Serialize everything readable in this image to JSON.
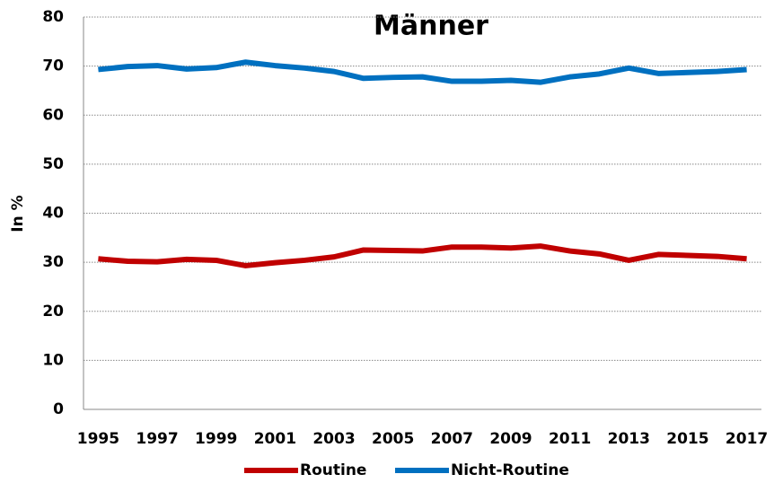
{
  "chart_data": {
    "type": "line",
    "title": "Männer",
    "y_label": "In %",
    "x": [
      1995,
      1996,
      1997,
      1998,
      1999,
      2000,
      2001,
      2002,
      2003,
      2004,
      2005,
      2006,
      2007,
      2008,
      2009,
      2010,
      2011,
      2012,
      2013,
      2014,
      2015,
      2016,
      2017
    ],
    "xlim": [
      1994.5,
      2017.5
    ],
    "xticks": [
      1995,
      1997,
      1999,
      2001,
      2003,
      2005,
      2007,
      2009,
      2011,
      2013,
      2015,
      2017
    ],
    "ylim": [
      0,
      80
    ],
    "yticks": [
      0,
      10,
      20,
      30,
      40,
      50,
      60,
      70,
      80
    ],
    "grid": true,
    "legend": "bottom",
    "series": [
      {
        "name": "Routine",
        "color": "#c00000",
        "values": [
          30.7,
          30.2,
          30.1,
          30.6,
          30.4,
          29.3,
          29.9,
          30.4,
          31.1,
          32.5,
          32.4,
          32.3,
          33.1,
          33.1,
          32.9,
          33.3,
          32.3,
          31.7,
          30.4,
          31.6,
          31.4,
          31.2,
          30.7
        ]
      },
      {
        "name": "Nicht-Routine",
        "color": "#0070c0",
        "values": [
          69.3,
          69.9,
          70.1,
          69.4,
          69.7,
          70.8,
          70.1,
          69.6,
          68.9,
          67.5,
          67.7,
          67.8,
          66.9,
          66.9,
          67.1,
          66.7,
          67.8,
          68.4,
          69.6,
          68.5,
          68.7,
          68.9,
          69.3
        ]
      }
    ]
  }
}
